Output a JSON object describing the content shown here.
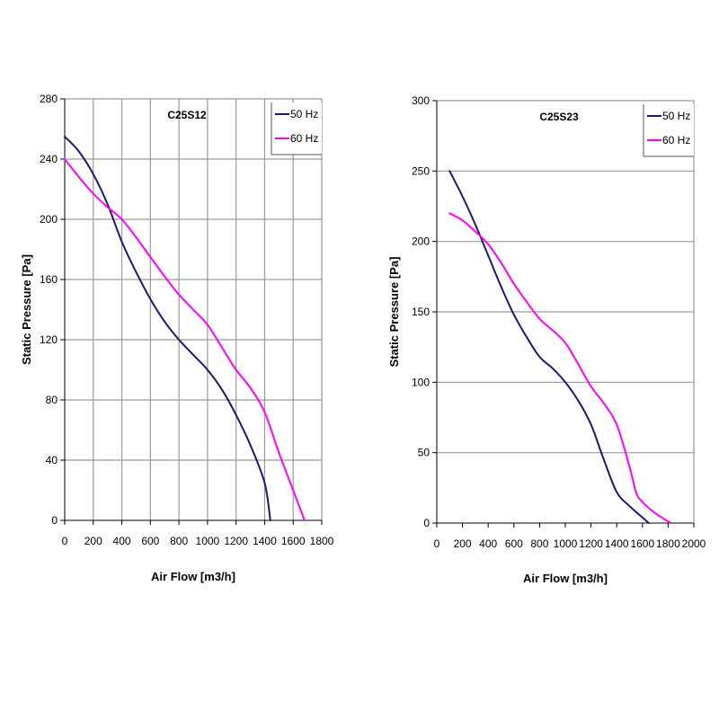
{
  "chart_data": [
    {
      "type": "line",
      "title": "C25S12",
      "xlabel": "Air Flow [m3/h]",
      "ylabel": "Static Pressure [Pa]",
      "xlim": [
        0,
        1800
      ],
      "ylim": [
        0,
        280
      ],
      "xticks": [
        0,
        200,
        400,
        600,
        800,
        1000,
        1200,
        1400,
        1600,
        1800
      ],
      "yticks": [
        0,
        40,
        80,
        120,
        160,
        200,
        240,
        280
      ],
      "grid": "horizontal and vertical",
      "legend_position": "top-right",
      "series": [
        {
          "name": "50 Hz",
          "color": "#1a1a6e",
          "points": [
            [
              0,
              255
            ],
            [
              100,
              245
            ],
            [
              200,
              230
            ],
            [
              300,
              210
            ],
            [
              400,
              185
            ],
            [
              500,
              165
            ],
            [
              600,
              147
            ],
            [
              700,
              132
            ],
            [
              800,
              120
            ],
            [
              900,
              110
            ],
            [
              1000,
              100
            ],
            [
              1100,
              87
            ],
            [
              1200,
              70
            ],
            [
              1300,
              50
            ],
            [
              1400,
              25
            ],
            [
              1440,
              0
            ]
          ]
        },
        {
          "name": "60 Hz",
          "color": "#ff00ff",
          "points": [
            [
              0,
              240
            ],
            [
              100,
              228
            ],
            [
              200,
              217
            ],
            [
              300,
              208
            ],
            [
              400,
              200
            ],
            [
              500,
              188
            ],
            [
              600,
              175
            ],
            [
              700,
              162
            ],
            [
              800,
              150
            ],
            [
              900,
              140
            ],
            [
              1000,
              130
            ],
            [
              1100,
              115
            ],
            [
              1200,
              100
            ],
            [
              1300,
              88
            ],
            [
              1400,
              72
            ],
            [
              1500,
              45
            ],
            [
              1600,
              20
            ],
            [
              1680,
              0
            ]
          ]
        }
      ]
    },
    {
      "type": "line",
      "title": "C25S23",
      "xlabel": "Air Flow [m3/h]",
      "ylabel": "Static Pressure [Pa]",
      "xlim": [
        0,
        2000
      ],
      "ylim": [
        0,
        300
      ],
      "xticks": [
        0,
        200,
        400,
        600,
        800,
        1000,
        1200,
        1400,
        1600,
        1800,
        2000
      ],
      "yticks": [
        0,
        50,
        100,
        150,
        200,
        250,
        300
      ],
      "grid": "horizontal",
      "legend_position": "top-right",
      "series": [
        {
          "name": "50 Hz",
          "color": "#1a1a6e",
          "points": [
            [
              100,
              250
            ],
            [
              200,
              232
            ],
            [
              300,
              212
            ],
            [
              400,
              190
            ],
            [
              500,
              168
            ],
            [
              600,
              148
            ],
            [
              700,
              132
            ],
            [
              800,
              118
            ],
            [
              900,
              110
            ],
            [
              1000,
              100
            ],
            [
              1100,
              87
            ],
            [
              1200,
              70
            ],
            [
              1300,
              45
            ],
            [
              1400,
              22
            ],
            [
              1500,
              12
            ],
            [
              1600,
              4
            ],
            [
              1650,
              0
            ]
          ]
        },
        {
          "name": "60 Hz",
          "color": "#ff00ff",
          "points": [
            [
              100,
              220
            ],
            [
              200,
              215
            ],
            [
              300,
              207
            ],
            [
              400,
              198
            ],
            [
              500,
              185
            ],
            [
              600,
              170
            ],
            [
              700,
              157
            ],
            [
              800,
              145
            ],
            [
              900,
              137
            ],
            [
              1000,
              128
            ],
            [
              1100,
              113
            ],
            [
              1200,
              97
            ],
            [
              1300,
              85
            ],
            [
              1400,
              70
            ],
            [
              1500,
              40
            ],
            [
              1550,
              22
            ],
            [
              1600,
              15
            ],
            [
              1700,
              7
            ],
            [
              1820,
              0
            ]
          ]
        }
      ]
    }
  ]
}
